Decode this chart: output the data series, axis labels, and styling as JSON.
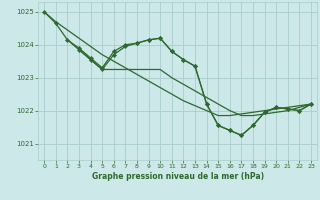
{
  "title": "Graphe pression niveau de la mer (hPa)",
  "bg_color": "#cce8e8",
  "grid_color": "#aacccc",
  "line_color": "#2d6a2d",
  "xlim": [
    -0.5,
    23.5
  ],
  "ylim": [
    1020.5,
    1025.3
  ],
  "yticks": [
    1021,
    1022,
    1023,
    1024,
    1025
  ],
  "xticks": [
    0,
    1,
    2,
    3,
    4,
    5,
    6,
    7,
    8,
    9,
    10,
    11,
    12,
    13,
    14,
    15,
    16,
    17,
    18,
    19,
    20,
    21,
    22,
    23
  ],
  "series": [
    {
      "x": [
        0,
        1,
        2,
        3,
        4,
        5,
        6,
        7,
        8,
        9,
        10,
        11,
        12,
        13,
        14,
        15,
        16,
        17,
        18,
        19,
        20,
        21,
        22,
        23
      ],
      "y": [
        1025.0,
        1024.7,
        1024.45,
        1024.2,
        1023.95,
        1023.7,
        1023.5,
        1023.3,
        1023.1,
        1022.9,
        1022.7,
        1022.5,
        1022.3,
        1022.15,
        1022.0,
        1021.85,
        1021.85,
        1021.9,
        1021.95,
        1022.0,
        1022.05,
        1022.1,
        1022.15,
        1022.2
      ],
      "marker": false,
      "lw": 0.9
    },
    {
      "x": [
        0,
        1,
        2,
        3,
        4,
        5,
        6,
        7,
        8,
        9,
        10,
        11,
        12,
        13,
        14,
        15,
        16,
        17,
        18,
        19,
        20,
        21,
        22,
        23
      ],
      "y": [
        1025.0,
        1024.65,
        1024.15,
        1023.9,
        1023.6,
        1023.3,
        1023.8,
        1024.0,
        1024.05,
        1024.15,
        1024.2,
        1023.8,
        1023.55,
        1023.35,
        1022.2,
        1021.55,
        1021.4,
        1021.25,
        1021.55,
        1021.95,
        1022.1,
        1022.05,
        1022.0,
        1022.2
      ],
      "marker": true,
      "lw": 0.9
    },
    {
      "x": [
        2,
        3,
        4,
        5,
        6,
        7,
        8,
        9,
        10,
        11,
        12,
        13,
        14,
        15,
        16,
        17,
        18,
        19,
        20,
        21,
        22,
        23
      ],
      "y": [
        1024.15,
        1023.85,
        1023.55,
        1023.25,
        1023.25,
        1023.25,
        1023.25,
        1023.25,
        1023.25,
        1023.0,
        1022.8,
        1022.6,
        1022.4,
        1022.2,
        1022.0,
        1021.85,
        1021.85,
        1021.9,
        1021.95,
        1022.0,
        1022.1,
        1022.2
      ],
      "marker": false,
      "lw": 0.9
    },
    {
      "x": [
        3,
        4,
        5,
        6,
        7,
        8,
        9,
        10,
        11,
        12,
        13,
        14,
        15,
        16,
        17,
        18,
        19,
        20,
        21,
        22,
        23
      ],
      "y": [
        1023.85,
        1023.55,
        1023.25,
        1023.7,
        1023.95,
        1024.05,
        1024.15,
        1024.2,
        1023.8,
        1023.55,
        1023.35,
        1022.2,
        1021.55,
        1021.4,
        1021.25,
        1021.55,
        1021.95,
        1022.1,
        1022.05,
        1022.0,
        1022.2
      ],
      "marker": true,
      "lw": 0.9
    }
  ]
}
